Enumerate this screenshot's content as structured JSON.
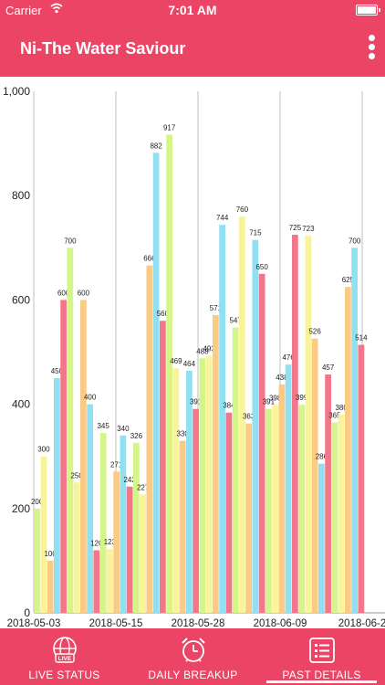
{
  "status": {
    "carrier": "Carrier",
    "time": "7:01 AM"
  },
  "app": {
    "title": "Ni-The Water Saviour"
  },
  "icons": {
    "menu": "overflow-menu-icon",
    "wifi": "wifi-icon",
    "battery": "battery-icon"
  },
  "tabs": [
    {
      "label": "LIVE STATUS",
      "icon": "globe-live-icon"
    },
    {
      "label": "DAILY BREAKUP",
      "icon": "alarm-clock-icon"
    },
    {
      "label": "PAST DETAILS",
      "icon": "list-icon",
      "active": true
    }
  ],
  "colors": {
    "accent": "#ec4465",
    "green": "#d5f58a",
    "yellow": "#f9f49a",
    "blue": "#90e0f2",
    "orange": "#fbcb85",
    "red": "#f2778a"
  },
  "chart_data": {
    "type": "bar",
    "ylim": [
      0,
      1000
    ],
    "yticks": [
      {
        "v": 0,
        "t": "0"
      },
      {
        "v": 200,
        "t": "200"
      },
      {
        "v": 400,
        "t": "400"
      },
      {
        "v": 600,
        "t": "600"
      },
      {
        "v": 800,
        "t": "800"
      },
      {
        "v": 1000,
        "t": "1,000"
      }
    ],
    "xtick_labels": [
      "2018-05-03",
      "2018-05-15",
      "2018-05-28",
      "2018-06-09",
      "2018-06-2"
    ],
    "bars": [
      {
        "value": 200,
        "color": "green"
      },
      {
        "value": 300,
        "color": "yellow"
      },
      {
        "value": 100,
        "color": "orange"
      },
      {
        "value": 450,
        "color": "blue"
      },
      {
        "value": 600,
        "color": "red"
      },
      {
        "value": 700,
        "color": "green"
      },
      {
        "value": 250,
        "color": "yellow"
      },
      {
        "value": 600,
        "color": "orange"
      },
      {
        "value": 400,
        "color": "blue"
      },
      {
        "value": 120,
        "color": "red"
      },
      {
        "value": 345,
        "color": "green"
      },
      {
        "value": 123,
        "color": "yellow"
      },
      {
        "value": 271,
        "color": "orange"
      },
      {
        "value": 340,
        "color": "blue"
      },
      {
        "value": 242,
        "color": "red"
      },
      {
        "value": 326,
        "color": "green"
      },
      {
        "value": 227,
        "color": "yellow"
      },
      {
        "value": 666,
        "color": "orange"
      },
      {
        "value": 882,
        "color": "blue"
      },
      {
        "value": 560,
        "color": "red"
      },
      {
        "value": 917,
        "color": "green"
      },
      {
        "value": 469,
        "color": "yellow"
      },
      {
        "value": 330,
        "color": "orange"
      },
      {
        "value": 464,
        "color": "blue"
      },
      {
        "value": 391,
        "color": "red"
      },
      {
        "value": 488,
        "color": "green"
      },
      {
        "value": 493,
        "color": "yellow"
      },
      {
        "value": 571,
        "color": "orange"
      },
      {
        "value": 744,
        "color": "blue"
      },
      {
        "value": 384,
        "color": "red"
      },
      {
        "value": 547,
        "color": "green"
      },
      {
        "value": 760,
        "color": "yellow"
      },
      {
        "value": 363,
        "color": "orange"
      },
      {
        "value": 715,
        "color": "blue"
      },
      {
        "value": 650,
        "color": "red"
      },
      {
        "value": 391,
        "color": "green"
      },
      {
        "value": 398,
        "color": "yellow"
      },
      {
        "value": 438,
        "color": "orange"
      },
      {
        "value": 476,
        "color": "blue"
      },
      {
        "value": 725,
        "color": "red"
      },
      {
        "value": 399,
        "color": "green"
      },
      {
        "value": 723,
        "color": "yellow"
      },
      {
        "value": 526,
        "color": "orange"
      },
      {
        "value": 286,
        "color": "blue"
      },
      {
        "value": 457,
        "color": "red"
      },
      {
        "value": 365,
        "color": "green"
      },
      {
        "value": 380,
        "color": "yellow"
      },
      {
        "value": 625,
        "color": "orange"
      },
      {
        "value": 700,
        "color": "blue"
      },
      {
        "value": 514,
        "color": "red"
      }
    ]
  }
}
